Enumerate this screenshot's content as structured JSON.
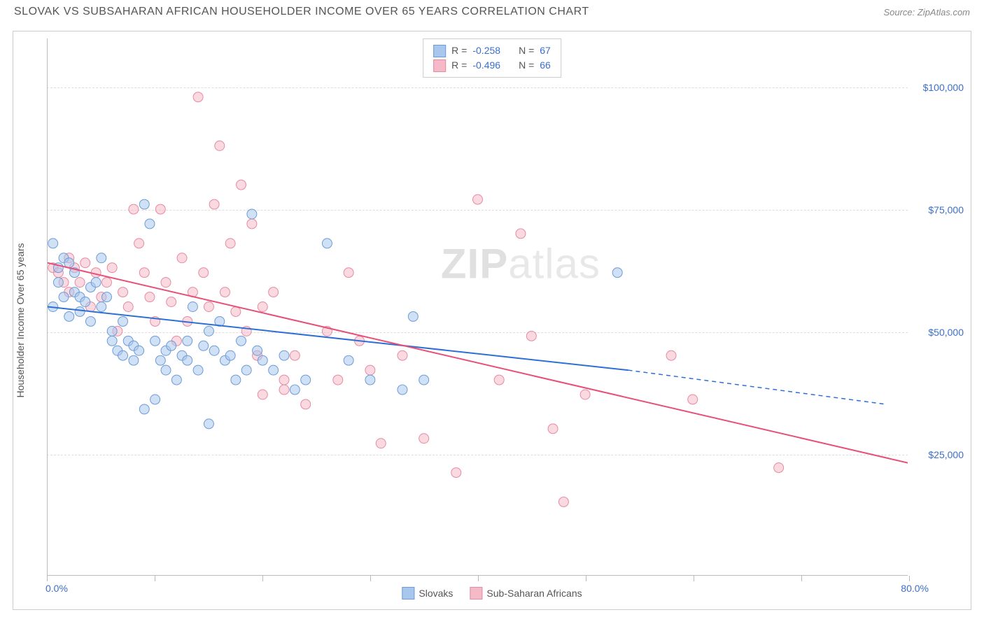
{
  "header": {
    "title": "SLOVAK VS SUBSAHARAN AFRICAN HOUSEHOLDER INCOME OVER 65 YEARS CORRELATION CHART",
    "source": "Source: ZipAtlas.com"
  },
  "chart": {
    "type": "scatter",
    "ylabel": "Householder Income Over 65 years",
    "xlim": [
      0,
      80
    ],
    "ylim": [
      0,
      110000
    ],
    "xtick_min_label": "0.0%",
    "xtick_max_label": "80.0%",
    "xtick_positions": [
      0,
      10,
      20,
      30,
      40,
      50,
      60,
      70,
      80
    ],
    "ytick_values": [
      25000,
      50000,
      75000,
      100000
    ],
    "ytick_labels": [
      "$25,000",
      "$50,000",
      "$75,000",
      "$100,000"
    ],
    "watermark_zip": "ZIP",
    "watermark_atlas": "atlas",
    "background_color": "#ffffff",
    "grid_color": "#dddddd",
    "axis_color": "#bbbbbb",
    "label_color": "#555555",
    "value_color": "#3b6fc9",
    "title_fontsize": 16,
    "label_fontsize": 14
  },
  "series": {
    "slovaks": {
      "label": "Slovaks",
      "fill": "#a9c7ec",
      "stroke": "#6b9bd8",
      "fill_opacity": 0.55,
      "line_color": "#2e6fd6",
      "line_width": 2,
      "marker_radius": 7,
      "r": "-0.258",
      "n": "67",
      "trend": {
        "x1": 0,
        "y1": 55000,
        "x2": 54,
        "y2": 42000,
        "x2_dash": 78,
        "y2_dash": 35000
      },
      "points": [
        [
          0.5,
          68000
        ],
        [
          1,
          63000
        ],
        [
          1,
          60000
        ],
        [
          1.5,
          57000
        ],
        [
          1.5,
          65000
        ],
        [
          0.5,
          55000
        ],
        [
          2,
          53000
        ],
        [
          2,
          64000
        ],
        [
          2.5,
          62000
        ],
        [
          2.5,
          58000
        ],
        [
          3,
          57000
        ],
        [
          3,
          54000
        ],
        [
          3.5,
          56000
        ],
        [
          4,
          59000
        ],
        [
          4,
          52000
        ],
        [
          4.5,
          60000
        ],
        [
          5,
          65000
        ],
        [
          5,
          55000
        ],
        [
          5.5,
          57000
        ],
        [
          6,
          50000
        ],
        [
          6,
          48000
        ],
        [
          6.5,
          46000
        ],
        [
          7,
          52000
        ],
        [
          7,
          45000
        ],
        [
          7.5,
          48000
        ],
        [
          8,
          47000
        ],
        [
          8,
          44000
        ],
        [
          8.5,
          46000
        ],
        [
          9,
          76000
        ],
        [
          9.5,
          72000
        ],
        [
          10,
          48000
        ],
        [
          10,
          36000
        ],
        [
          10.5,
          44000
        ],
        [
          11,
          46000
        ],
        [
          11,
          42000
        ],
        [
          11.5,
          47000
        ],
        [
          12,
          40000
        ],
        [
          12.5,
          45000
        ],
        [
          13,
          48000
        ],
        [
          13,
          44000
        ],
        [
          13.5,
          55000
        ],
        [
          14,
          42000
        ],
        [
          14.5,
          47000
        ],
        [
          15,
          50000
        ],
        [
          15,
          31000
        ],
        [
          15.5,
          46000
        ],
        [
          16,
          52000
        ],
        [
          16.5,
          44000
        ],
        [
          17,
          45000
        ],
        [
          17.5,
          40000
        ],
        [
          18,
          48000
        ],
        [
          18.5,
          42000
        ],
        [
          19,
          74000
        ],
        [
          19.5,
          46000
        ],
        [
          20,
          44000
        ],
        [
          21,
          42000
        ],
        [
          22,
          45000
        ],
        [
          23,
          38000
        ],
        [
          24,
          40000
        ],
        [
          26,
          68000
        ],
        [
          28,
          44000
        ],
        [
          30,
          40000
        ],
        [
          33,
          38000
        ],
        [
          34,
          53000
        ],
        [
          35,
          40000
        ],
        [
          53,
          62000
        ],
        [
          9,
          34000
        ]
      ]
    },
    "subsaharan": {
      "label": "Sub-Saharan Africans",
      "fill": "#f5b9c8",
      "stroke": "#e58aa1",
      "fill_opacity": 0.55,
      "line_color": "#e94e77",
      "line_width": 2,
      "marker_radius": 7,
      "r": "-0.496",
      "n": "66",
      "trend": {
        "x1": 0,
        "y1": 64000,
        "x2": 80,
        "y2": 23000
      },
      "points": [
        [
          0.5,
          63000
        ],
        [
          1,
          62000
        ],
        [
          1.5,
          60000
        ],
        [
          2,
          65000
        ],
        [
          2,
          58000
        ],
        [
          2.5,
          63000
        ],
        [
          3,
          60000
        ],
        [
          3.5,
          64000
        ],
        [
          4,
          55000
        ],
        [
          4.5,
          62000
        ],
        [
          5,
          57000
        ],
        [
          5.5,
          60000
        ],
        [
          6,
          63000
        ],
        [
          6.5,
          50000
        ],
        [
          7,
          58000
        ],
        [
          7.5,
          55000
        ],
        [
          8,
          75000
        ],
        [
          8.5,
          68000
        ],
        [
          9,
          62000
        ],
        [
          9.5,
          57000
        ],
        [
          10,
          52000
        ],
        [
          10.5,
          75000
        ],
        [
          11,
          60000
        ],
        [
          11.5,
          56000
        ],
        [
          12,
          48000
        ],
        [
          12.5,
          65000
        ],
        [
          13,
          52000
        ],
        [
          13.5,
          58000
        ],
        [
          14,
          98000
        ],
        [
          14.5,
          62000
        ],
        [
          15,
          55000
        ],
        [
          15.5,
          76000
        ],
        [
          16,
          88000
        ],
        [
          16.5,
          58000
        ],
        [
          17,
          68000
        ],
        [
          17.5,
          54000
        ],
        [
          18,
          80000
        ],
        [
          18.5,
          50000
        ],
        [
          19,
          72000
        ],
        [
          19.5,
          45000
        ],
        [
          20,
          55000
        ],
        [
          21,
          58000
        ],
        [
          22,
          40000
        ],
        [
          23,
          45000
        ],
        [
          24,
          35000
        ],
        [
          26,
          50000
        ],
        [
          27,
          40000
        ],
        [
          28,
          62000
        ],
        [
          29,
          48000
        ],
        [
          30,
          42000
        ],
        [
          31,
          27000
        ],
        [
          33,
          45000
        ],
        [
          35,
          28000
        ],
        [
          38,
          21000
        ],
        [
          40,
          77000
        ],
        [
          42,
          40000
        ],
        [
          44,
          70000
        ],
        [
          45,
          49000
        ],
        [
          47,
          30000
        ],
        [
          48,
          15000
        ],
        [
          50,
          37000
        ],
        [
          58,
          45000
        ],
        [
          60,
          36000
        ],
        [
          68,
          22000
        ],
        [
          20,
          37000
        ],
        [
          22,
          38000
        ]
      ]
    }
  },
  "stats_box": {
    "r_label": "R =",
    "n_label": "N ="
  },
  "legend": {
    "slovaks": "Slovaks",
    "subsaharan": "Sub-Saharan Africans"
  }
}
